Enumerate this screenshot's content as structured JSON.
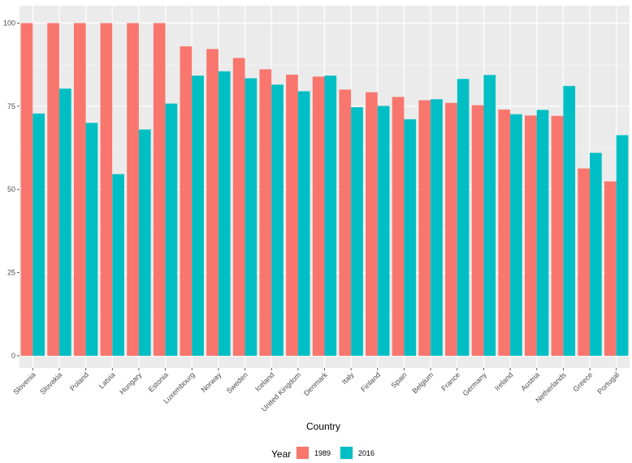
{
  "chart_data": {
    "type": "bar",
    "xlabel": "Country",
    "ylabel": "",
    "title": "",
    "ylim": [
      0,
      105
    ],
    "yticks": [
      0,
      25,
      50,
      75,
      100
    ],
    "grid": true,
    "legend_position": "bottom",
    "legend_title": "Year",
    "categories": [
      "Slovenia",
      "Slovakia",
      "Poland",
      "Latvia",
      "Hungary",
      "Estonia",
      "Luxembourg",
      "Norway",
      "Sweden",
      "Iceland",
      "United Kingdom",
      "Denmark",
      "Italy",
      "Finland",
      "Spain",
      "Belgium",
      "France",
      "Germany",
      "Ireland",
      "Austria",
      "Netherlands",
      "Greece",
      "Portugal"
    ],
    "series": [
      {
        "name": "1989",
        "color": "#F8766D",
        "values": [
          100,
          100,
          100,
          100,
          100,
          100,
          93,
          92.2,
          89.5,
          86.1,
          84.5,
          83.9,
          80,
          79.2,
          77.8,
          76.8,
          76,
          75.3,
          74,
          72.2,
          72.1,
          56.3,
          52.4
        ]
      },
      {
        "name": "2016",
        "color": "#00BFC4",
        "values": [
          72.8,
          80.3,
          70.0,
          54.6,
          68.0,
          75.8,
          84.2,
          85.5,
          83.4,
          81.5,
          79.5,
          84.2,
          74.7,
          75.1,
          71.1,
          77.1,
          83.2,
          84.4,
          72.6,
          73.9,
          81.1,
          61.0,
          66.3
        ]
      }
    ]
  }
}
